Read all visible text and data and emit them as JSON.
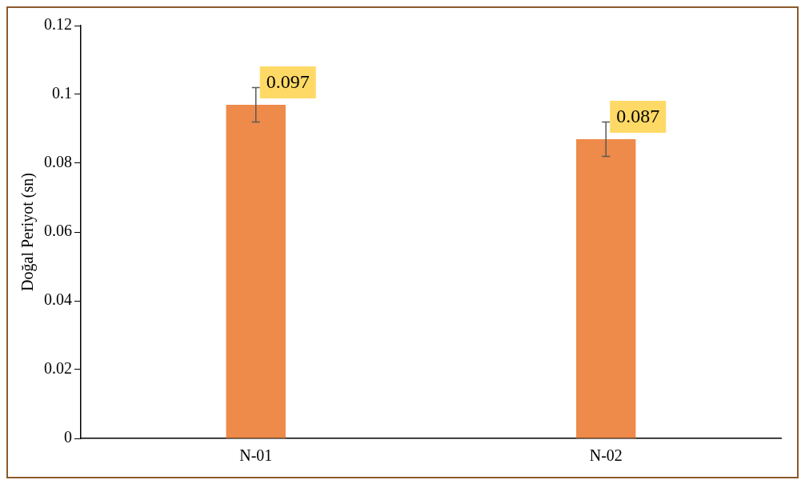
{
  "chart_data": {
    "type": "bar",
    "ylabel": "Doğal Periyot (sn)",
    "categories": [
      "N-01",
      "N-02"
    ],
    "series": [
      {
        "color": "#ee8a4a",
        "values": [
          0.097,
          0.087
        ],
        "errors": [
          0.005,
          0.005
        ]
      }
    ],
    "ylim": [
      0,
      0.12
    ],
    "yticks": [
      0,
      0.02,
      0.04,
      0.06,
      0.08,
      0.1,
      0.12
    ],
    "grid": false,
    "legend": false,
    "data_labels": true
  }
}
